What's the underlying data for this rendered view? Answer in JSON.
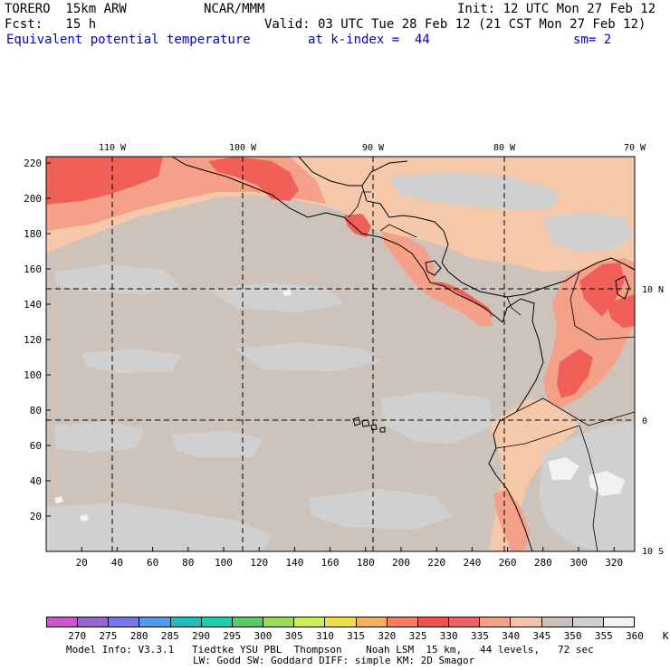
{
  "header": {
    "model_line": "TORERO  15km ARW",
    "center": "NCAR/MMM",
    "init": "Init: 12 UTC Mon 27 Feb 12",
    "fcst_line": "Fcst:   15 h",
    "valid": "Valid: 03 UTC Tue 28 Feb 12 (21 CST Mon 27 Feb 12)",
    "field": "Equivalent potential temperature",
    "kindex": "at k-index =  44",
    "smooth": "sm= 2"
  },
  "axes": {
    "top_lon_labels": [
      "110 W",
      "100 W",
      "90 W",
      "80 W",
      "70 W"
    ],
    "right_lat_labels": [
      "10 N",
      "0",
      "10 S"
    ],
    "left_ticks": [
      "220",
      "200",
      "180",
      "160",
      "140",
      "120",
      "100",
      "80",
      "60",
      "40",
      "20"
    ],
    "bottom_ticks": [
      "20",
      "40",
      "60",
      "80",
      "100",
      "120",
      "140",
      "160",
      "180",
      "200",
      "220",
      "240",
      "260",
      "280",
      "300",
      "320"
    ]
  },
  "legend": {
    "colors": [
      "#cc55cc",
      "#9966cc",
      "#7777ee",
      "#5599ee",
      "#22bbbb",
      "#22ccaa",
      "#55cc66",
      "#99dd55",
      "#ccee55",
      "#eedd44",
      "#f5b060",
      "#f08060",
      "#f05050",
      "#f06060",
      "#f5a088",
      "#f5c4a8",
      "#ccc0b8",
      "#d0d0d0",
      "#f2f2f2"
    ],
    "labels": [
      "270",
      "275",
      "280",
      "285",
      "290",
      "295",
      "300",
      "305",
      "310",
      "315",
      "320",
      "325",
      "330",
      "335",
      "340",
      "345",
      "350",
      "355",
      "360",
      "K"
    ]
  },
  "footer": {
    "line1": "Model Info: V3.3.1   Tiedtke YSU PBL  Thompson    Noah LSM  15 km,   44 levels,   72 sec",
    "line2": "LW: Godd SW: Goddard DIFF: simple KM: 2D Smagor"
  },
  "colors": {
    "base": "#cdc3bb",
    "gray": "#d0d0d0",
    "light": "#f2f2f2",
    "peach": "#f6c8aa",
    "salmon": "#f5a088",
    "red": "#f06058",
    "blue_text": "#0000cc"
  }
}
